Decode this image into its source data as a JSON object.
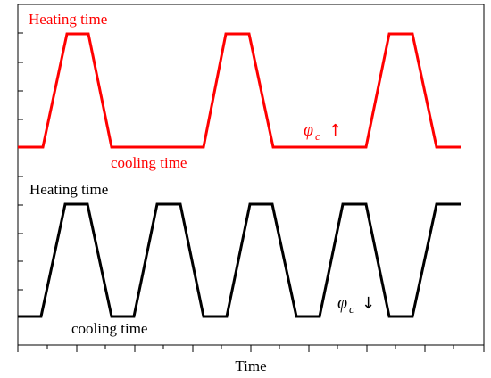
{
  "diagram": {
    "x_axis_label": "Time",
    "top_waveform": {
      "color": "#ff0000",
      "heating_label": "Heating time",
      "cooling_label": "cooling time",
      "phi_symbol": "φ",
      "phi_subscript": "c",
      "trend_arrow": "↑"
    },
    "bottom_waveform": {
      "color": "#000000",
      "heating_label": "Heating time",
      "cooling_label": "cooling time",
      "phi_symbol": "φ",
      "phi_subscript": "c",
      "trend_arrow": "↓"
    }
  }
}
